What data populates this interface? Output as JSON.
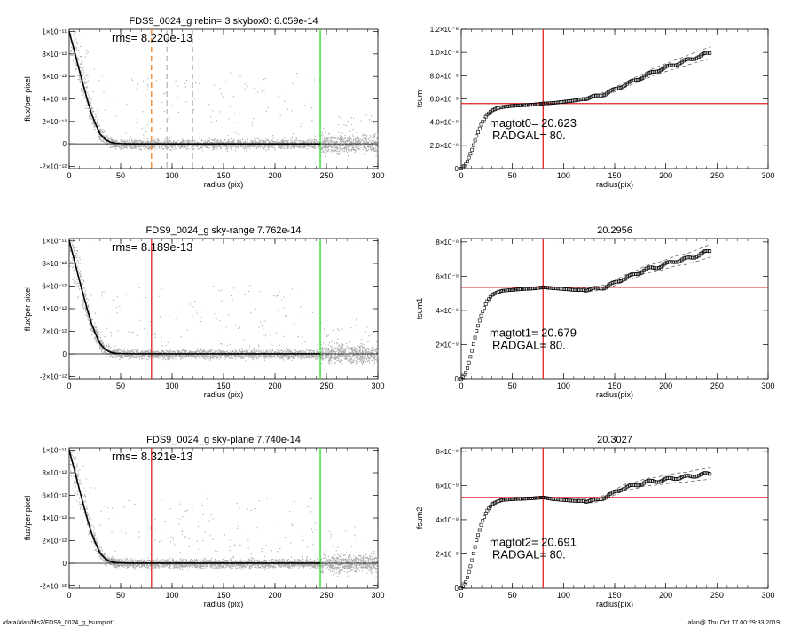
{
  "footer": {
    "left": "/data/alan/fds2/FDS9_0024_g_fsumplot1",
    "right": "alan@  Thu Oct 17 00:29:33 2019"
  },
  "colors": {
    "scatter": "#a8a8a8",
    "profile": "#000000",
    "orange": "#f08020",
    "red": "#e02020",
    "green": "#22dd22",
    "axes": "#000000"
  },
  "chart_data": [
    {
      "type": "scatter",
      "title": "FDS9_0024_g rebin= 3    skybox0:  6.059e-14",
      "annotation": "rms= 8.220e-13",
      "xlabel": "radius (pix)",
      "ylabel": "flux/per pixel",
      "xlim": [
        0,
        300
      ],
      "ylim": [
        -2.2e-12,
        1.02e-11
      ],
      "x_ticks": [
        0,
        50,
        100,
        150,
        200,
        250,
        300
      ],
      "y_ticks": [
        {
          "value": -2e-12,
          "label": "-2×10⁻¹²"
        },
        {
          "value": 0,
          "label": "0"
        },
        {
          "value": 2e-12,
          "label": "2×10⁻¹²"
        },
        {
          "value": 4e-12,
          "label": "4×10⁻¹²"
        },
        {
          "value": 6e-12,
          "label": "6×10⁻¹²"
        },
        {
          "value": 8e-12,
          "label": "8×10⁻¹²"
        },
        {
          "value": 1e-11,
          "label": "1×10⁻¹¹"
        }
      ],
      "vlines": [
        {
          "x": 80,
          "color": "orange",
          "style": "dashed"
        },
        {
          "x": 95,
          "color": "gray",
          "style": "dashed"
        },
        {
          "x": 120,
          "color": "gray",
          "style": "dashed"
        },
        {
          "x": 244,
          "color": "green",
          "style": "solid"
        }
      ],
      "profile": {
        "x": [
          0,
          2,
          5,
          8,
          10,
          12,
          15,
          18,
          20,
          22,
          25,
          28,
          30,
          35,
          40,
          45,
          50,
          60,
          80,
          100,
          150,
          200,
          244
        ],
        "y": [
          1e-11,
          9.3e-12,
          8.3e-12,
          7.2e-12,
          6.5e-12,
          5.8e-12,
          4.8e-12,
          3.8e-12,
          3.2e-12,
          2.6e-12,
          1.9e-12,
          1.3e-12,
          9e-13,
          4e-13,
          1.5e-13,
          5e-14,
          2e-14,
          0,
          0,
          0,
          0,
          0,
          0
        ]
      }
    },
    {
      "type": "line",
      "title": "",
      "xlabel": "radius(pix)",
      "ylabel": "fsum",
      "xlim": [
        0,
        300
      ],
      "ylim": [
        0,
        1.2e-08
      ],
      "x_ticks": [
        0,
        50,
        100,
        150,
        200,
        250,
        300
      ],
      "y_ticks": [
        {
          "value": 0,
          "label": "0"
        },
        {
          "value": 2e-09,
          "label": "2.0×10⁻⁹"
        },
        {
          "value": 4e-09,
          "label": "4.0×10⁻⁹"
        },
        {
          "value": 6e-09,
          "label": "6.0×10⁻⁹"
        },
        {
          "value": 8e-09,
          "label": "8.0×10⁻⁹"
        },
        {
          "value": 1e-08,
          "label": "1.0×10⁻⁸"
        },
        {
          "value": 1.2e-08,
          "label": "1.2×10⁻⁸"
        }
      ],
      "vline_x": 80,
      "hline_y": 5.6e-09,
      "annotations": [
        "magtot0=  20.623",
        "RADGAL=     80."
      ],
      "series": {
        "x": [
          0,
          5,
          10,
          15,
          20,
          25,
          30,
          35,
          40,
          50,
          60,
          70,
          80,
          90,
          100,
          110,
          120,
          130,
          140,
          150,
          160,
          170,
          180,
          190,
          200,
          210,
          220,
          230,
          244
        ],
        "y": [
          0,
          4e-10,
          1.5e-09,
          2.8e-09,
          3.9e-09,
          4.6e-09,
          5e-09,
          5.2e-09,
          5.3e-09,
          5.4e-09,
          5.45e-09,
          5.5e-09,
          5.6e-09,
          5.65e-09,
          5.75e-09,
          5.85e-09,
          6e-09,
          6.2e-09,
          6.4e-09,
          6.8e-09,
          7.2e-09,
          7.6e-09,
          8e-09,
          8.4e-09,
          8.7e-09,
          9e-09,
          9.3e-09,
          9.6e-09,
          1e-08
        ]
      }
    },
    {
      "type": "scatter",
      "title": "FDS9_0024_g sky-range  7.762e-14",
      "annotation": "rms= 8.189e-13",
      "xlabel": "radius (pix)",
      "ylabel": "flux/per pixel",
      "xlim": [
        0,
        300
      ],
      "ylim": [
        -2.2e-12,
        1.02e-11
      ],
      "x_ticks": [
        0,
        50,
        100,
        150,
        200,
        250,
        300
      ],
      "y_ticks": [
        {
          "value": -2e-12,
          "label": "-2×10⁻¹²"
        },
        {
          "value": 0,
          "label": "0"
        },
        {
          "value": 2e-12,
          "label": "2×10⁻¹²"
        },
        {
          "value": 4e-12,
          "label": "4×10⁻¹²"
        },
        {
          "value": 6e-12,
          "label": "6×10⁻¹²"
        },
        {
          "value": 8e-12,
          "label": "8×10⁻¹²"
        },
        {
          "value": 1e-11,
          "label": "1×10⁻¹¹"
        }
      ],
      "vlines": [
        {
          "x": 80,
          "color": "red",
          "style": "solid"
        },
        {
          "x": 244,
          "color": "green",
          "style": "solid"
        }
      ],
      "profile": {
        "x": [
          0,
          2,
          5,
          8,
          10,
          12,
          15,
          18,
          20,
          22,
          25,
          28,
          30,
          35,
          40,
          45,
          50,
          60,
          80,
          100,
          150,
          200,
          244
        ],
        "y": [
          1e-11,
          9.3e-12,
          8.3e-12,
          7.2e-12,
          6.5e-12,
          5.8e-12,
          4.8e-12,
          3.8e-12,
          3.2e-12,
          2.6e-12,
          1.9e-12,
          1.3e-12,
          9e-13,
          4e-13,
          1.5e-13,
          5e-14,
          2e-14,
          0,
          0,
          0,
          0,
          0,
          0
        ]
      }
    },
    {
      "type": "line",
      "title": "20.2956",
      "xlabel": "radius(pix)",
      "ylabel": "fsum1",
      "xlim": [
        0,
        300
      ],
      "ylim": [
        0,
        8.2e-09
      ],
      "x_ticks": [
        0,
        50,
        100,
        150,
        200,
        250,
        300
      ],
      "y_ticks": [
        {
          "value": 0,
          "label": "0"
        },
        {
          "value": 2e-09,
          "label": "2×10⁻⁹"
        },
        {
          "value": 4e-09,
          "label": "4×10⁻⁹"
        },
        {
          "value": 6e-09,
          "label": "6×10⁻⁹"
        },
        {
          "value": 8e-09,
          "label": "8×10⁻⁹"
        }
      ],
      "vline_x": 80,
      "hline_y": 5.35e-09,
      "annotations": [
        "magtot1=  20.679",
        "RADGAL=     80."
      ],
      "series": {
        "x": [
          0,
          5,
          10,
          15,
          20,
          25,
          30,
          35,
          40,
          50,
          60,
          70,
          80,
          90,
          100,
          110,
          120,
          130,
          140,
          150,
          160,
          170,
          180,
          190,
          200,
          210,
          220,
          230,
          244
        ],
        "y": [
          0,
          4e-10,
          1.5e-09,
          2.8e-09,
          3.8e-09,
          4.5e-09,
          4.9e-09,
          5.05e-09,
          5.15e-09,
          5.2e-09,
          5.25e-09,
          5.28e-09,
          5.35e-09,
          5.3e-09,
          5.25e-09,
          5.2e-09,
          5.2e-09,
          5.25e-09,
          5.35e-09,
          5.6e-09,
          5.9e-09,
          6.1e-09,
          6.4e-09,
          6.5e-09,
          6.7e-09,
          6.9e-09,
          7e-09,
          7.2e-09,
          7.5e-09
        ]
      }
    },
    {
      "type": "scatter",
      "title": "FDS9_0024_g sky-plane  7.740e-14",
      "annotation": "rms= 8.321e-13",
      "xlabel": "radius (pix)",
      "ylabel": "flux/per pixel",
      "xlim": [
        0,
        300
      ],
      "ylim": [
        -2.2e-12,
        1.02e-11
      ],
      "x_ticks": [
        0,
        50,
        100,
        150,
        200,
        250,
        300
      ],
      "y_ticks": [
        {
          "value": -2e-12,
          "label": "-2×10⁻¹²"
        },
        {
          "value": 0,
          "label": "0"
        },
        {
          "value": 2e-12,
          "label": "2×10⁻¹²"
        },
        {
          "value": 4e-12,
          "label": "4×10⁻¹²"
        },
        {
          "value": 6e-12,
          "label": "6×10⁻¹²"
        },
        {
          "value": 8e-12,
          "label": "8×10⁻¹²"
        },
        {
          "value": 1e-11,
          "label": "1×10⁻¹¹"
        }
      ],
      "vlines": [
        {
          "x": 80,
          "color": "red",
          "style": "solid"
        },
        {
          "x": 244,
          "color": "green",
          "style": "solid"
        }
      ],
      "profile": {
        "x": [
          0,
          2,
          5,
          8,
          10,
          12,
          15,
          18,
          20,
          22,
          25,
          28,
          30,
          35,
          40,
          45,
          50,
          60,
          80,
          100,
          150,
          200,
          244
        ],
        "y": [
          1e-11,
          9.3e-12,
          8.3e-12,
          7.2e-12,
          6.5e-12,
          5.8e-12,
          4.8e-12,
          3.8e-12,
          3.2e-12,
          2.6e-12,
          1.9e-12,
          1.3e-12,
          9e-13,
          4e-13,
          1.5e-13,
          5e-14,
          2e-14,
          0,
          0,
          0,
          0,
          0,
          0
        ]
      }
    },
    {
      "type": "line",
      "title": "20.3027",
      "xlabel": "radius(pix)",
      "ylabel": "fsum2",
      "xlim": [
        0,
        300
      ],
      "ylim": [
        0,
        8.2e-09
      ],
      "x_ticks": [
        0,
        50,
        100,
        150,
        200,
        250,
        300
      ],
      "y_ticks": [
        {
          "value": 0,
          "label": "0"
        },
        {
          "value": 2e-09,
          "label": "2×10⁻⁹"
        },
        {
          "value": 4e-09,
          "label": "4×10⁻⁹"
        },
        {
          "value": 6e-09,
          "label": "6×10⁻⁹"
        },
        {
          "value": 8e-09,
          "label": "8×10⁻⁹"
        }
      ],
      "vline_x": 80,
      "hline_y": 5.3e-09,
      "annotations": [
        "magtot2=  20.691",
        "RADGAL=     80."
      ],
      "series": {
        "x": [
          0,
          5,
          10,
          15,
          20,
          25,
          30,
          35,
          40,
          50,
          60,
          70,
          80,
          90,
          100,
          110,
          120,
          130,
          140,
          150,
          160,
          170,
          180,
          190,
          200,
          210,
          220,
          230,
          244
        ],
        "y": [
          0,
          4e-10,
          1.5e-09,
          2.8e-09,
          3.8e-09,
          4.5e-09,
          4.9e-09,
          5.05e-09,
          5.15e-09,
          5.2e-09,
          5.22e-09,
          5.25e-09,
          5.3e-09,
          5.2e-09,
          5.15e-09,
          5.1e-09,
          5.1e-09,
          5.1e-09,
          5.3e-09,
          5.6e-09,
          5.9e-09,
          6e-09,
          6.2e-09,
          6.25e-09,
          6.35e-09,
          6.45e-09,
          6.5e-09,
          6.6e-09,
          6.7e-09
        ]
      }
    }
  ]
}
